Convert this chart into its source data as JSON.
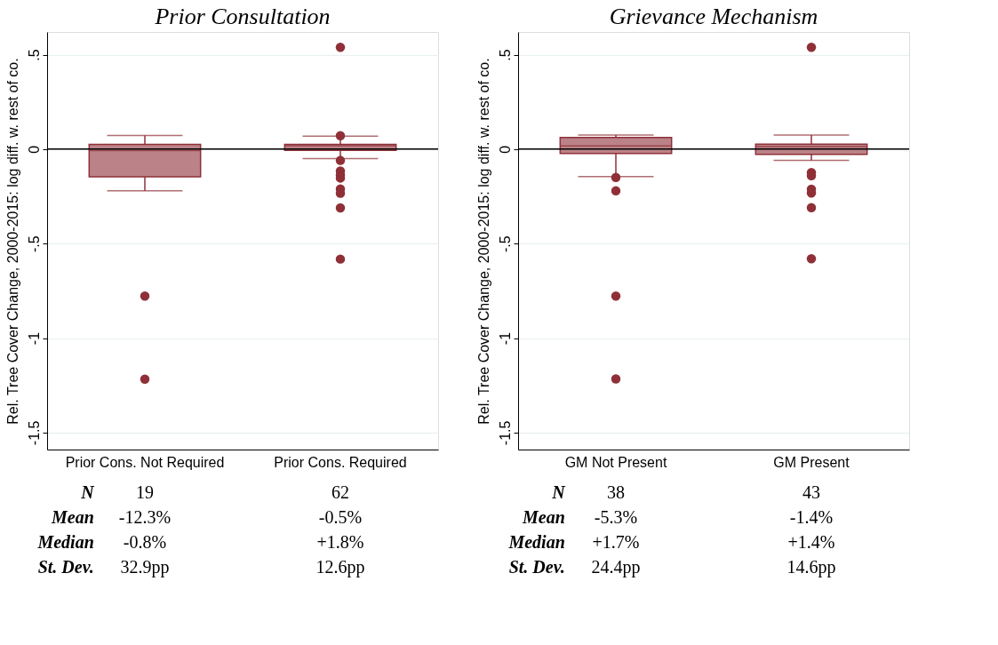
{
  "chart_data": [
    {
      "type": "box",
      "title": "Prior Consultation",
      "ylabel": "Rel. Tree Cover Change, 2000-2015: log diff. w. rest of co.",
      "categories": [
        "Prior Cons. Not Required",
        "Prior Cons. Required"
      ],
      "series": [
        {
          "color": "#8f3038",
          "boxes": [
            {
              "low": -0.22,
              "q1": -0.146,
              "median": -0.008,
              "q3": 0.025,
              "high": 0.072,
              "outliers": [
                -0.778,
                -1.217
              ]
            },
            {
              "low": -0.05,
              "q1": -0.006,
              "median": 0.018,
              "q3": 0.025,
              "high": 0.069,
              "outliers": [
                0.539,
                0.071,
                -0.06,
                -0.116,
                -0.137,
                -0.153,
                -0.211,
                -0.234,
                -0.311,
                -0.582
              ]
            }
          ]
        }
      ],
      "ylim": [
        -1.59,
        0.62
      ],
      "yticks": [
        {
          "value": 0.5,
          "label": ".5"
        },
        0,
        {
          "value": -0.5,
          "label": "-.5"
        },
        -1,
        {
          "value": -1.5,
          "label": "-1.5"
        }
      ],
      "grid": "y",
      "ref_lines": [
        {
          "axis": "y",
          "value": 0,
          "color": "#000000"
        }
      ],
      "annotations": [
        "N",
        "19",
        "62",
        "Mean",
        "-12.3%",
        "-0.5%",
        "Median",
        "-0.8%",
        "+1.8%",
        "St. Dev.",
        "32.9pp",
        "12.6pp"
      ]
    },
    {
      "type": "box",
      "title": "Grievance Mechanism",
      "ylabel": "Rel. Tree Cover Change, 2000-2015: log diff. w. rest of co.",
      "categories": [
        "GM Not Present",
        "GM Present"
      ],
      "series": [
        {
          "color": "#8f3038",
          "boxes": [
            {
              "low": -0.145,
              "q1": -0.023,
              "median": 0.017,
              "q3": 0.062,
              "high": 0.074,
              "outliers": [
                -0.15,
                -0.221,
                -0.778,
                -1.216
              ]
            },
            {
              "low": -0.059,
              "q1": -0.028,
              "median": 0.014,
              "q3": 0.026,
              "high": 0.074,
              "outliers": [
                0.539,
                -0.124,
                -0.141,
                -0.212,
                -0.232,
                -0.31,
                -0.58
              ]
            }
          ]
        }
      ],
      "ylim": [
        -1.59,
        0.62
      ],
      "yticks": [
        {
          "value": 0.5,
          "label": ".5"
        },
        0,
        {
          "value": -0.5,
          "label": "-.5"
        },
        -1,
        {
          "value": -1.5,
          "label": "-1.5"
        }
      ],
      "grid": "y",
      "ref_lines": [
        {
          "axis": "y",
          "value": 0,
          "color": "#000000"
        }
      ],
      "annotations": [
        "N",
        "38",
        "43",
        "Mean",
        "-5.3%",
        "-1.4%",
        "Median",
        "+1.7%",
        "+1.4%",
        "St. Dev.",
        "24.4pp",
        "14.6pp"
      ]
    }
  ]
}
